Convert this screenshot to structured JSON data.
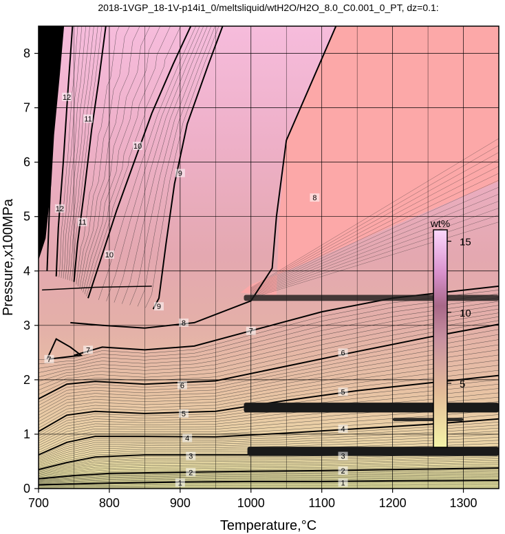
{
  "chart_data": {
    "type": "heatmap",
    "title": "2018-1VGP_18-1V-p14i1_0/meltsliquid/wtH2O/H2O_8.0_C0.001_0_PT, dz=0.1:",
    "xlabel": "Temperature,°C",
    "ylabel": "Pressure,x100MPa",
    "xlim": [
      700,
      1350
    ],
    "ylim": [
      0,
      8.5
    ],
    "x_ticks": [
      700,
      800,
      900,
      1000,
      1100,
      1200,
      1300
    ],
    "y_ticks": [
      0,
      1,
      2,
      3,
      4,
      5,
      6,
      7,
      8
    ],
    "grid": true,
    "colorbar": {
      "label": "wt%",
      "range": [
        0.5,
        15.8
      ],
      "ticks": [
        5,
        10,
        15
      ],
      "placement": "right-inside",
      "colors": [
        "#f4f4a8",
        "#e0b890",
        "#c88ca0",
        "#b06888",
        "#d490c8",
        "#fcd0fc"
      ]
    },
    "fill_colors": {
      "saturated_region": "#fca8a8",
      "high_pressure_low_T": "#f8b8d8",
      "low_pressure": "#f2eea8"
    },
    "series": [
      {
        "name": "1",
        "label_positions": [
          [
            900,
            0.11
          ],
          [
            1130,
            0.11
          ]
        ],
        "values": [
          [
            700,
            0.07
          ],
          [
            800,
            0.1
          ],
          [
            900,
            0.12
          ],
          [
            1000,
            0.13
          ],
          [
            1100,
            0.13
          ],
          [
            1200,
            0.14
          ],
          [
            1350,
            0.15
          ]
        ]
      },
      {
        "name": "2",
        "label_positions": [
          [
            915,
            0.3
          ],
          [
            1130,
            0.33
          ]
        ],
        "values": [
          [
            700,
            0.18
          ],
          [
            750,
            0.24
          ],
          [
            800,
            0.28
          ],
          [
            900,
            0.3
          ],
          [
            1000,
            0.32
          ],
          [
            1100,
            0.33
          ],
          [
            1200,
            0.35
          ],
          [
            1350,
            0.38
          ]
        ]
      },
      {
        "name": "3",
        "label_positions": [
          [
            915,
            0.6
          ],
          [
            1130,
            0.6
          ]
        ],
        "values": [
          [
            700,
            0.35
          ],
          [
            740,
            0.48
          ],
          [
            780,
            0.58
          ],
          [
            850,
            0.62
          ],
          [
            950,
            0.62
          ],
          [
            1050,
            0.62
          ],
          [
            1150,
            0.64
          ],
          [
            1250,
            0.68
          ],
          [
            1350,
            0.72
          ]
        ]
      },
      {
        "name": "4",
        "label_positions": [
          [
            910,
            0.93
          ],
          [
            1130,
            1.1
          ]
        ],
        "values": [
          [
            700,
            0.62
          ],
          [
            740,
            0.85
          ],
          [
            780,
            0.96
          ],
          [
            850,
            0.96
          ],
          [
            950,
            0.95
          ],
          [
            1050,
            1.02
          ],
          [
            1150,
            1.1
          ],
          [
            1250,
            1.18
          ],
          [
            1350,
            1.28
          ]
        ]
      },
      {
        "name": "5",
        "label_positions": [
          [
            905,
            1.38
          ],
          [
            1130,
            1.78
          ]
        ],
        "values": [
          [
            700,
            1.05
          ],
          [
            740,
            1.35
          ],
          [
            780,
            1.42
          ],
          [
            850,
            1.38
          ],
          [
            950,
            1.42
          ],
          [
            1050,
            1.62
          ],
          [
            1150,
            1.8
          ],
          [
            1250,
            1.94
          ],
          [
            1350,
            2.08
          ]
        ]
      },
      {
        "name": "6",
        "label_positions": [
          [
            903,
            1.9
          ],
          [
            1130,
            2.5
          ]
        ],
        "values": [
          [
            700,
            1.65
          ],
          [
            740,
            1.92
          ],
          [
            780,
            1.97
          ],
          [
            850,
            1.92
          ],
          [
            950,
            1.98
          ],
          [
            1050,
            2.25
          ],
          [
            1150,
            2.52
          ],
          [
            1250,
            2.78
          ],
          [
            1350,
            3.02
          ]
        ]
      },
      {
        "name": "7",
        "label_positions": [
          [
            1000,
            2.9
          ],
          [
            770,
            2.55
          ],
          [
            715,
            2.38
          ]
        ],
        "values": [
          [
            750,
            2.45
          ],
          [
            790,
            2.6
          ],
          [
            850,
            2.55
          ],
          [
            920,
            2.62
          ],
          [
            1000,
            2.9
          ],
          [
            1100,
            3.25
          ],
          [
            1200,
            3.5
          ],
          [
            1350,
            3.72
          ]
        ]
      },
      {
        "name": "8",
        "label_positions": [
          [
            905,
            3.05
          ],
          [
            1090,
            5.35
          ]
        ],
        "values": [
          [
            745,
            3.05
          ],
          [
            790,
            3.0
          ],
          [
            850,
            2.95
          ],
          [
            920,
            3.05
          ],
          [
            1000,
            3.45
          ],
          [
            1030,
            4.05
          ],
          [
            1036,
            5.0
          ],
          [
            1050,
            6.4
          ],
          [
            1090,
            7.6
          ],
          [
            1120,
            8.5
          ]
        ]
      },
      {
        "name": "9",
        "label_positions": [
          [
            870,
            3.35
          ],
          [
            900,
            5.8
          ]
        ],
        "values": [
          [
            862,
            3.3
          ],
          [
            870,
            3.5
          ],
          [
            880,
            4.5
          ],
          [
            892,
            5.6
          ],
          [
            910,
            6.7
          ],
          [
            940,
            7.8
          ],
          [
            960,
            8.5
          ]
        ]
      },
      {
        "name": "10",
        "label_positions": [
          [
            800,
            4.3
          ],
          [
            840,
            6.3
          ]
        ],
        "values": [
          [
            770,
            3.5
          ],
          [
            785,
            4.1
          ],
          [
            810,
            5.1
          ],
          [
            835,
            6.0
          ],
          [
            860,
            6.9
          ],
          [
            890,
            7.8
          ],
          [
            915,
            8.5
          ]
        ]
      },
      {
        "name": "11",
        "label_positions": [
          [
            762,
            4.9
          ],
          [
            770,
            6.8
          ]
        ],
        "values": [
          [
            750,
            3.8
          ],
          [
            755,
            4.5
          ],
          [
            765,
            5.5
          ],
          [
            775,
            6.6
          ],
          [
            785,
            7.5
          ],
          [
            795,
            8.5
          ]
        ]
      },
      {
        "name": "12",
        "label_positions": [
          [
            730,
            5.15
          ],
          [
            740,
            7.2
          ]
        ],
        "values": [
          [
            725,
            3.9
          ],
          [
            728,
            4.8
          ],
          [
            735,
            6.0
          ],
          [
            742,
            7.4
          ],
          [
            748,
            8.5
          ]
        ]
      }
    ]
  }
}
